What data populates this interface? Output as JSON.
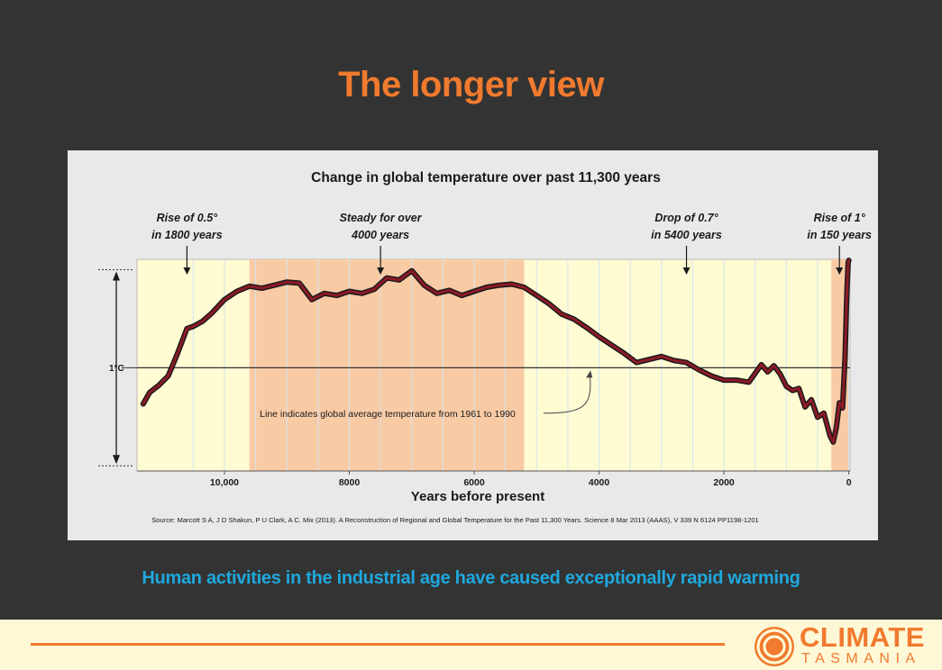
{
  "slide": {
    "title": "The longer view",
    "caption": "Human activities in the industrial age have caused exceptionally rapid warming"
  },
  "logo": {
    "word": "CLIMATE",
    "sub": "TASMANIA"
  },
  "colors": {
    "background": "#333333",
    "title": "#F07A2E",
    "caption": "#1FA8DE",
    "plot_yellow": "#FFFBD3",
    "shade_orange": "#F9CBA5",
    "line_dark": "#1A1A1A",
    "line_red": "#8C1A26",
    "footer": "#FFF8D6",
    "accent_orange": "#F07A2E"
  },
  "chart_data": {
    "type": "line",
    "title": "Change in global temperature over past 11,300 years",
    "xlabel": "Years before present",
    "ylabel": "",
    "x_reversed": true,
    "xlim": [
      11400,
      -20
    ],
    "ylim": [
      -1.0,
      1.05
    ],
    "xticks": [
      10000,
      8000,
      6000,
      4000,
      2000,
      0
    ],
    "xtick_labels": [
      "10,000",
      "8000",
      "6000",
      "4000",
      "2000",
      "0"
    ],
    "grid": true,
    "gridlines_x": [
      10500,
      10000,
      9500,
      9000,
      8500,
      8000,
      7500,
      7000,
      6500,
      6000,
      5500,
      5000,
      4500,
      4000,
      3500,
      3000,
      2500,
      2000,
      1500,
      1000,
      500,
      0
    ],
    "scale_bar": {
      "label": "1°C",
      "y_from": -0.95,
      "y_to": 0.95
    },
    "reference_line": {
      "y": 0,
      "note": "Line indicates global average temperature from 1961 to 1990"
    },
    "shaded_periods": [
      {
        "from": 9600,
        "to": 5200
      },
      {
        "from": 280,
        "to": 0
      }
    ],
    "annotations": [
      {
        "line1": "Rise of 0.5°",
        "line2": "in 1800 years",
        "x": 10600
      },
      {
        "line1": "Steady for over",
        "line2": "4000 years",
        "x": 7500
      },
      {
        "line1": "Drop of 0.7°",
        "line2": "in 5400 years",
        "x": 2600
      },
      {
        "line1": "Rise of 1°",
        "line2": "in 150 years",
        "x": 150
      }
    ],
    "source": "Source: Marcott S A, J D Shakun, P U Clark, A C. Mix (2013).  A Reconstruction of Regional and Global Temperature for the Past 11,300 Years. Science 8 Mar 2013 (AAAS), V 339 N 6124 PP1198-1201",
    "series": [
      {
        "x": [
          11300,
          11200,
          11050,
          10900,
          10750,
          10600,
          10500,
          10350,
          10200,
          10000,
          9800,
          9600,
          9400,
          9200,
          9000,
          8800,
          8700,
          8600,
          8400,
          8200,
          8000,
          7800,
          7600,
          7400,
          7200,
          7000,
          6800,
          6600,
          6400,
          6200,
          6000,
          5800,
          5600,
          5400,
          5200,
          5000,
          4800,
          4600,
          4400,
          4200,
          4000,
          3800,
          3600,
          3400,
          3200,
          3000,
          2800,
          2600,
          2400,
          2200,
          2000,
          1800,
          1600,
          1400,
          1300,
          1200,
          1100,
          1000,
          900,
          800,
          700,
          600,
          500,
          400,
          300,
          250,
          200,
          150,
          100,
          60,
          30,
          10,
          0
        ],
        "y": [
          -0.35,
          -0.24,
          -0.17,
          -0.08,
          0.14,
          0.38,
          0.4,
          0.45,
          0.53,
          0.66,
          0.74,
          0.79,
          0.77,
          0.8,
          0.83,
          0.82,
          0.74,
          0.66,
          0.72,
          0.7,
          0.74,
          0.72,
          0.76,
          0.87,
          0.85,
          0.94,
          0.8,
          0.72,
          0.75,
          0.7,
          0.74,
          0.78,
          0.8,
          0.81,
          0.78,
          0.7,
          0.62,
          0.52,
          0.47,
          0.39,
          0.3,
          0.22,
          0.14,
          0.05,
          0.08,
          0.11,
          0.07,
          0.05,
          -0.02,
          -0.08,
          -0.12,
          -0.12,
          -0.14,
          0.03,
          -0.04,
          0.02,
          -0.06,
          -0.18,
          -0.22,
          -0.2,
          -0.38,
          -0.31,
          -0.48,
          -0.44,
          -0.66,
          -0.72,
          -0.58,
          -0.34,
          -0.39,
          0.12,
          0.74,
          1.02,
          1.04
        ]
      }
    ]
  }
}
